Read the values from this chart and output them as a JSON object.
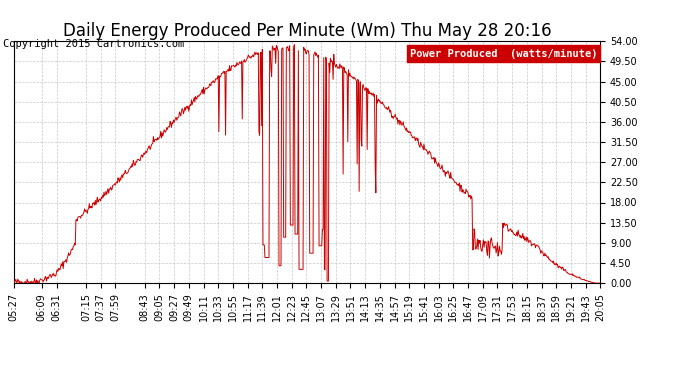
{
  "title": "Daily Energy Produced Per Minute (Wm) Thu May 28 20:16",
  "copyright": "Copyright 2015 Cartronics.com",
  "legend_label": "Power Produced  (watts/minute)",
  "legend_bg": "#cc0000",
  "legend_fg": "#ffffff",
  "line_color": "#cc0000",
  "bg_color": "#ffffff",
  "grid_color": "#c8c8c8",
  "ylim": [
    0,
    54.0
  ],
  "yticks": [
    0.0,
    4.5,
    9.0,
    13.5,
    18.0,
    22.5,
    27.0,
    31.5,
    36.0,
    40.5,
    45.0,
    49.5,
    54.0
  ],
  "xtick_labels": [
    "05:27",
    "06:09",
    "06:31",
    "07:15",
    "07:37",
    "07:59",
    "08:43",
    "09:05",
    "09:27",
    "09:49",
    "10:11",
    "10:33",
    "10:55",
    "11:17",
    "11:39",
    "12:01",
    "12:23",
    "12:45",
    "13:07",
    "13:29",
    "13:51",
    "14:13",
    "14:35",
    "14:57",
    "15:19",
    "15:41",
    "16:03",
    "16:25",
    "16:47",
    "17:09",
    "17:31",
    "17:53",
    "18:15",
    "18:37",
    "18:59",
    "19:21",
    "19:43",
    "20:05"
  ],
  "title_fontsize": 12,
  "tick_fontsize": 7,
  "copyright_fontsize": 7.5,
  "legend_fontsize": 7.5
}
